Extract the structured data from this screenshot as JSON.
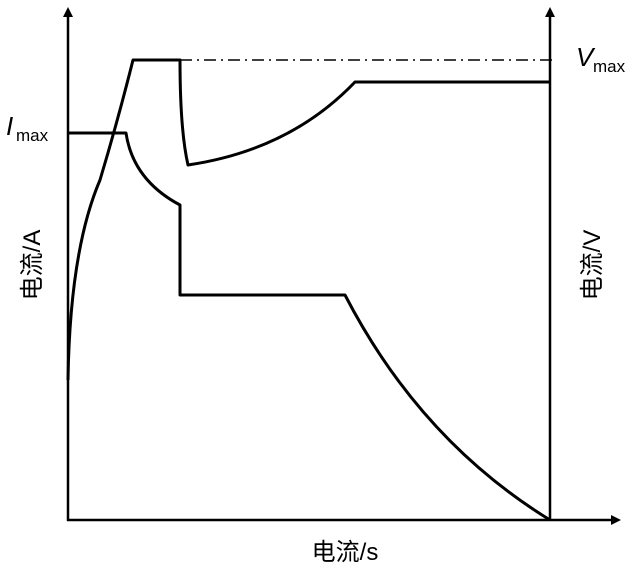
{
  "axes": {
    "left_label": "电流/A",
    "right_label": "电流/V",
    "bottom_label": "电流/s"
  },
  "annotations": {
    "current_max": {
      "symbol": "I",
      "subscript": "max"
    },
    "voltage_max": {
      "symbol": "V",
      "subscript": "max"
    }
  }
}
